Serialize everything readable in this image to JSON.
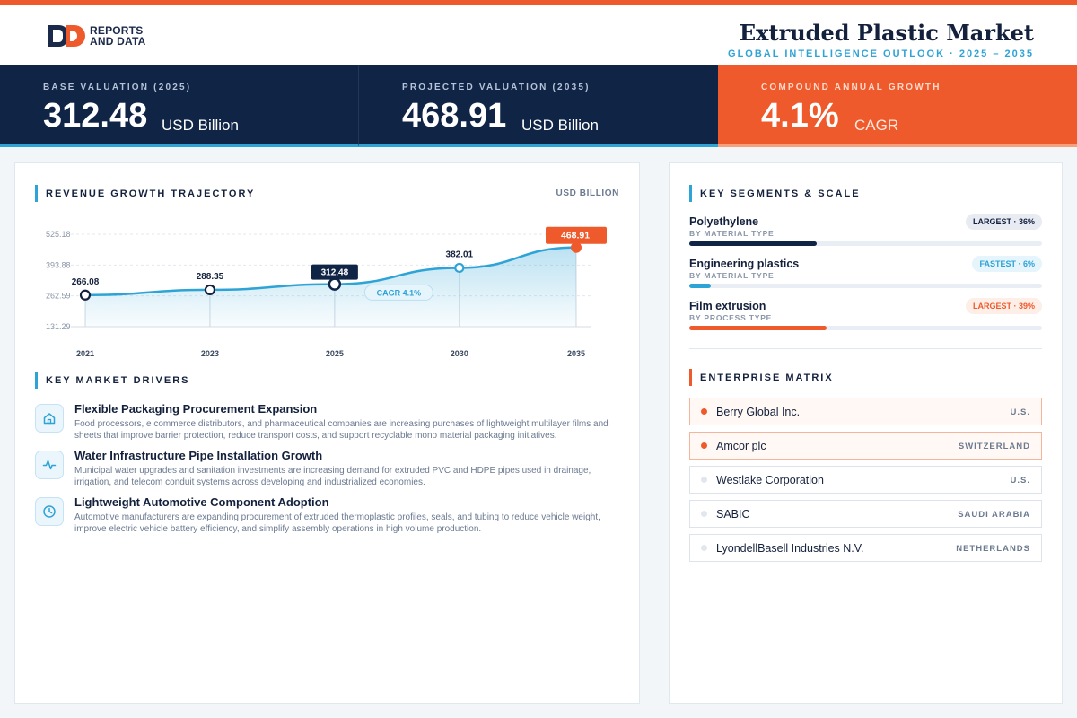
{
  "brand": {
    "line1": "REPORTS",
    "line2": "AND DATA"
  },
  "header": {
    "title": "Extruded Plastic Market",
    "subtitle": "GLOBAL INTELLIGENCE OUTLOOK  ·  2025 – 2035"
  },
  "kpis": [
    {
      "label": "BASE VALUATION (2025)",
      "value": "312.48",
      "unit": "USD Billion"
    },
    {
      "label": "PROJECTED VALUATION (2035)",
      "value": "468.91",
      "unit": "USD Billion"
    },
    {
      "label": "COMPOUND ANNUAL GROWTH",
      "value": "4.1%",
      "unit": "CAGR"
    }
  ],
  "chart_section": {
    "title": "REVENUE GROWTH TRAJECTORY",
    "unit": "USD BILLION"
  },
  "chart_data": {
    "type": "area",
    "title": "REVENUE GROWTH TRAJECTORY",
    "ylabel": "USD BILLION",
    "categories": [
      "2021",
      "2023",
      "2025",
      "2030",
      "2035"
    ],
    "values": [
      266.08,
      288.35,
      312.48,
      382.01,
      468.91
    ],
    "data_labels": [
      "266.08",
      "288.35",
      "312.48",
      "382.01",
      "468.91"
    ],
    "yticks": [
      525.18,
      393.88,
      262.59,
      131.29
    ],
    "ytick_labels": [
      "525.18",
      "393.88",
      "262.59",
      "131.29"
    ],
    "ylim": [
      131.29,
      525.18
    ],
    "annotation": "CAGR 4.1%",
    "grid": true,
    "colors": {
      "line": "#2ea3d6",
      "highlight": "#102446",
      "endpoint": "#ee5a2b"
    }
  },
  "drivers_section": {
    "title": "KEY MARKET DRIVERS"
  },
  "drivers": [
    {
      "icon": "home-icon",
      "title": "Flexible Packaging Procurement Expansion",
      "desc": "Food processors, e commerce distributors, and pharmaceutical companies are increasing purchases of lightweight multilayer films and sheets that improve barrier protection, reduce transport costs, and support recyclable mono material packaging initiatives."
    },
    {
      "icon": "pulse-icon",
      "title": "Water Infrastructure Pipe Installation Growth",
      "desc": "Municipal water upgrades and sanitation investments are increasing demand for extruded PVC and HDPE pipes used in drainage, irrigation, and telecom conduit systems across developing and industrialized economies."
    },
    {
      "icon": "clock-icon",
      "title": "Lightweight Automotive Component Adoption",
      "desc": "Automotive manufacturers are expanding procurement of extruded thermoplastic profiles, seals, and tubing to reduce vehicle weight, improve electric vehicle battery efficiency, and simplify assembly operations in high volume production."
    }
  ],
  "segments_section": {
    "title": "KEY SEGMENTS & SCALE"
  },
  "segments": [
    {
      "name": "Polyethylene",
      "type": "BY MATERIAL TYPE",
      "badge": "LARGEST · 36%",
      "share": 0.36,
      "badge_style": "dark",
      "bar_color": "#102446"
    },
    {
      "name": "Engineering plastics",
      "type": "BY MATERIAL TYPE",
      "badge": "FASTEST · 6%",
      "share": 0.06,
      "badge_style": "blue",
      "bar_color": "#2ea3d6"
    },
    {
      "name": "Film extrusion",
      "type": "BY PROCESS TYPE",
      "badge": "LARGEST · 39%",
      "share": 0.39,
      "badge_style": "orange",
      "bar_color": "#ee5a2b"
    }
  ],
  "matrix_section": {
    "title": "ENTERPRISE MATRIX"
  },
  "enterprises": [
    {
      "name": "Berry Global Inc.",
      "country": "U.S.",
      "highlight": true
    },
    {
      "name": "Amcor plc",
      "country": "SWITZERLAND",
      "highlight": true
    },
    {
      "name": "Westlake Corporation",
      "country": "U.S.",
      "highlight": false
    },
    {
      "name": "SABIC",
      "country": "SAUDI ARABIA",
      "highlight": false
    },
    {
      "name": "LyondellBasell Industries N.V.",
      "country": "NETHERLANDS",
      "highlight": false
    }
  ]
}
